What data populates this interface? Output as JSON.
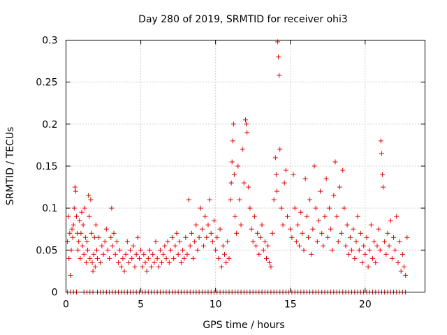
{
  "chart_data": {
    "type": "scatter",
    "title": "Day 280 of 2019, SRMTID for receiver ohi3",
    "xlabel": "GPS time / hours",
    "ylabel": "SRMTID / TECUs",
    "xlim": [
      0,
      24
    ],
    "ylim": [
      0,
      0.3
    ],
    "xticks": [
      0,
      5,
      10,
      15,
      20
    ],
    "xtick_labels": [
      "0",
      "5",
      "10",
      "15",
      "20"
    ],
    "yticks": [
      0,
      0.05,
      0.1,
      0.15,
      0.2,
      0.25,
      0.3
    ],
    "ytick_labels": [
      "0",
      "0.05",
      "0.1",
      "0.15",
      "0.2",
      "0.25",
      "0.3"
    ],
    "grid": true,
    "marker": "+",
    "color": "#e00000",
    "series": [
      {
        "name": "SRMTID",
        "points": [
          [
            0.1,
            0.06
          ],
          [
            0.15,
            0.09
          ],
          [
            0.2,
            0.04
          ],
          [
            0.25,
            0.07
          ],
          [
            0.3,
            0.02
          ],
          [
            0.35,
            0.05
          ],
          [
            0.4,
            0.075
          ],
          [
            0.45,
            0.065
          ],
          [
            0.5,
            0.08
          ],
          [
            0.55,
            0.1
          ],
          [
            0.6,
            0.125
          ],
          [
            0.65,
            0.12
          ],
          [
            0.7,
            0.09
          ],
          [
            0.75,
            0.07
          ],
          [
            0.8,
            0.05
          ],
          [
            0.85,
            0.06
          ],
          [
            0.9,
            0.085
          ],
          [
            0.95,
            0.04
          ],
          [
            1.0,
            0.07
          ],
          [
            1.05,
            0.095
          ],
          [
            1.1,
            0.055
          ],
          [
            1.15,
            0.08
          ],
          [
            1.2,
            0.045
          ],
          [
            1.25,
            0.1
          ],
          [
            1.3,
            0.065
          ],
          [
            1.35,
            0.035
          ],
          [
            1.4,
            0.06
          ],
          [
            1.45,
            0.05
          ],
          [
            1.5,
            0.115
          ],
          [
            1.55,
            0.09
          ],
          [
            1.6,
            0.04
          ],
          [
            1.65,
            0.11
          ],
          [
            1.7,
            0.07
          ],
          [
            1.75,
            0.035
          ],
          [
            1.8,
            0.025
          ],
          [
            1.85,
            0.045
          ],
          [
            1.9,
            0.065
          ],
          [
            1.95,
            0.03
          ],
          [
            2.0,
            0.08
          ],
          [
            2.05,
            0.05
          ],
          [
            2.1,
            0.04
          ],
          [
            2.2,
            0.065
          ],
          [
            2.3,
            0.035
          ],
          [
            2.4,
            0.055
          ],
          [
            2.5,
            0.045
          ],
          [
            2.6,
            0.06
          ],
          [
            2.7,
            0.075
          ],
          [
            2.8,
            0.05
          ],
          [
            2.9,
            0.04
          ],
          [
            3.0,
            0.065
          ],
          [
            3.05,
            0.1
          ],
          [
            3.1,
            0.055
          ],
          [
            3.2,
            0.07
          ],
          [
            3.3,
            0.045
          ],
          [
            3.4,
            0.06
          ],
          [
            3.5,
            0.035
          ],
          [
            3.6,
            0.05
          ],
          [
            3.7,
            0.03
          ],
          [
            3.8,
            0.04
          ],
          [
            3.9,
            0.025
          ],
          [
            4.0,
            0.045
          ],
          [
            4.1,
            0.06
          ],
          [
            4.2,
            0.035
          ],
          [
            4.3,
            0.05
          ],
          [
            4.4,
            0.04
          ],
          [
            4.5,
            0.055
          ],
          [
            4.6,
            0.03
          ],
          [
            4.7,
            0.045
          ],
          [
            4.8,
            0.065
          ],
          [
            4.9,
            0.04
          ],
          [
            5.0,
            0.05
          ],
          [
            5.1,
            0.03
          ],
          [
            5.2,
            0.045
          ],
          [
            5.3,
            0.035
          ],
          [
            5.4,
            0.025
          ],
          [
            5.5,
            0.04
          ],
          [
            5.6,
            0.05
          ],
          [
            5.7,
            0.03
          ],
          [
            5.8,
            0.045
          ],
          [
            5.9,
            0.035
          ],
          [
            6.0,
            0.06
          ],
          [
            6.1,
            0.04
          ],
          [
            6.2,
            0.03
          ],
          [
            6.3,
            0.05
          ],
          [
            6.4,
            0.035
          ],
          [
            6.5,
            0.045
          ],
          [
            6.6,
            0.055
          ],
          [
            6.7,
            0.04
          ],
          [
            6.8,
            0.06
          ],
          [
            6.9,
            0.035
          ],
          [
            7.0,
            0.05
          ],
          [
            7.1,
            0.065
          ],
          [
            7.2,
            0.04
          ],
          [
            7.3,
            0.055
          ],
          [
            7.4,
            0.07
          ],
          [
            7.5,
            0.045
          ],
          [
            7.6,
            0.06
          ],
          [
            7.7,
            0.035
          ],
          [
            7.8,
            0.05
          ],
          [
            7.9,
            0.04
          ],
          [
            8.0,
            0.065
          ],
          [
            8.1,
            0.045
          ],
          [
            8.2,
            0.11
          ],
          [
            8.3,
            0.055
          ],
          [
            8.4,
            0.07
          ],
          [
            8.5,
            0.04
          ],
          [
            8.6,
            0.06
          ],
          [
            8.7,
            0.08
          ],
          [
            8.8,
            0.05
          ],
          [
            8.9,
            0.065
          ],
          [
            9.0,
            0.1
          ],
          [
            9.1,
            0.075
          ],
          [
            9.2,
            0.055
          ],
          [
            9.3,
            0.09
          ],
          [
            9.4,
            0.065
          ],
          [
            9.5,
            0.08
          ],
          [
            9.6,
            0.11
          ],
          [
            9.7,
            0.07
          ],
          [
            9.8,
            0.06
          ],
          [
            9.9,
            0.085
          ],
          [
            10.0,
            0.05
          ],
          [
            10.1,
            0.065
          ],
          [
            10.2,
            0.04
          ],
          [
            10.3,
            0.075
          ],
          [
            10.4,
            0.03
          ],
          [
            10.5,
            0.055
          ],
          [
            10.6,
            0.045
          ],
          [
            10.7,
            0.035
          ],
          [
            10.8,
            0.06
          ],
          [
            10.9,
            0.04
          ],
          [
            11.0,
            0.11
          ],
          [
            11.05,
            0.13
          ],
          [
            11.1,
            0.155
          ],
          [
            11.15,
            0.18
          ],
          [
            11.2,
            0.2
          ],
          [
            11.25,
            0.14
          ],
          [
            11.3,
            0.09
          ],
          [
            11.4,
            0.07
          ],
          [
            11.5,
            0.15
          ],
          [
            11.6,
            0.11
          ],
          [
            11.7,
            0.08
          ],
          [
            11.8,
            0.17
          ],
          [
            11.9,
            0.13
          ],
          [
            12.0,
            0.205
          ],
          [
            12.05,
            0.2
          ],
          [
            12.1,
            0.19
          ],
          [
            12.2,
            0.125
          ],
          [
            12.3,
            0.1
          ],
          [
            12.4,
            0.075
          ],
          [
            12.5,
            0.06
          ],
          [
            12.6,
            0.09
          ],
          [
            12.7,
            0.055
          ],
          [
            12.8,
            0.07
          ],
          [
            12.9,
            0.045
          ],
          [
            13.0,
            0.065
          ],
          [
            13.1,
            0.08
          ],
          [
            13.2,
            0.05
          ],
          [
            13.3,
            0.06
          ],
          [
            13.4,
            0.04
          ],
          [
            13.5,
            0.055
          ],
          [
            13.6,
            0.035
          ],
          [
            13.7,
            0.03
          ],
          [
            13.8,
            0.07
          ],
          [
            13.9,
            0.11
          ],
          [
            14.0,
            0.16
          ],
          [
            14.05,
            0.14
          ],
          [
            14.1,
            0.12
          ],
          [
            14.15,
            0.298
          ],
          [
            14.2,
            0.28
          ],
          [
            14.25,
            0.258
          ],
          [
            14.3,
            0.17
          ],
          [
            14.4,
            0.1
          ],
          [
            14.5,
            0.08
          ],
          [
            14.6,
            0.13
          ],
          [
            14.7,
            0.145
          ],
          [
            14.8,
            0.09
          ],
          [
            15.0,
            0.075
          ],
          [
            15.1,
            0.065
          ],
          [
            15.2,
            0.14
          ],
          [
            15.3,
            0.1
          ],
          [
            15.4,
            0.06
          ],
          [
            15.5,
            0.08
          ],
          [
            15.6,
            0.055
          ],
          [
            15.7,
            0.095
          ],
          [
            15.8,
            0.07
          ],
          [
            15.9,
            0.05
          ],
          [
            16.0,
            0.135
          ],
          [
            16.1,
            0.09
          ],
          [
            16.2,
            0.065
          ],
          [
            16.3,
            0.11
          ],
          [
            16.4,
            0.045
          ],
          [
            16.5,
            0.075
          ],
          [
            16.6,
            0.15
          ],
          [
            16.7,
            0.1
          ],
          [
            16.8,
            0.06
          ],
          [
            16.9,
            0.085
          ],
          [
            17.0,
            0.12
          ],
          [
            17.1,
            0.07
          ],
          [
            17.2,
            0.055
          ],
          [
            17.3,
            0.09
          ],
          [
            17.4,
            0.135
          ],
          [
            17.5,
            0.065
          ],
          [
            17.6,
            0.1
          ],
          [
            17.7,
            0.075
          ],
          [
            17.8,
            0.05
          ],
          [
            17.9,
            0.115
          ],
          [
            18.0,
            0.155
          ],
          [
            18.1,
            0.09
          ],
          [
            18.2,
            0.06
          ],
          [
            18.3,
            0.125
          ],
          [
            18.4,
            0.07
          ],
          [
            18.5,
            0.145
          ],
          [
            18.6,
            0.1
          ],
          [
            18.7,
            0.055
          ],
          [
            18.8,
            0.08
          ],
          [
            18.9,
            0.045
          ],
          [
            19.0,
            0.065
          ],
          [
            19.1,
            0.05
          ],
          [
            19.2,
            0.075
          ],
          [
            19.3,
            0.04
          ],
          [
            19.4,
            0.06
          ],
          [
            19.5,
            0.09
          ],
          [
            19.6,
            0.05
          ],
          [
            19.7,
            0.07
          ],
          [
            19.8,
            0.035
          ],
          [
            19.9,
            0.055
          ],
          [
            20.0,
            0.045
          ],
          [
            20.1,
            0.065
          ],
          [
            20.2,
            0.03
          ],
          [
            20.3,
            0.05
          ],
          [
            20.4,
            0.08
          ],
          [
            20.5,
            0.04
          ],
          [
            20.6,
            0.06
          ],
          [
            20.7,
            0.035
          ],
          [
            20.8,
            0.055
          ],
          [
            20.9,
            0.075
          ],
          [
            21.0,
            0.05
          ],
          [
            21.05,
            0.18
          ],
          [
            21.1,
            0.165
          ],
          [
            21.15,
            0.14
          ],
          [
            21.2,
            0.125
          ],
          [
            21.3,
            0.06
          ],
          [
            21.4,
            0.045
          ],
          [
            21.5,
            0.07
          ],
          [
            21.6,
            0.055
          ],
          [
            21.7,
            0.085
          ],
          [
            21.8,
            0.04
          ],
          [
            21.9,
            0.065
          ],
          [
            22.0,
            0.05
          ],
          [
            22.1,
            0.09
          ],
          [
            22.2,
            0.035
          ],
          [
            22.3,
            0.06
          ],
          [
            22.4,
            0.025
          ],
          [
            22.5,
            0.045
          ],
          [
            22.6,
            0.03
          ],
          [
            22.7,
            0.02
          ],
          [
            22.8,
            0.065
          ]
        ],
        "zeros_x": [
          0.1,
          0.3,
          0.5,
          0.7,
          1.2,
          1.4,
          1.6,
          1.8,
          2.1,
          2.3,
          2.5,
          2.7,
          2.9,
          3.1,
          3.3,
          3.5,
          3.7,
          3.9,
          4.1,
          4.3,
          4.5,
          4.7,
          4.9,
          5.1,
          5.3,
          5.5,
          5.7,
          5.9,
          6.1,
          6.3,
          6.5,
          6.7,
          6.9,
          7.1,
          7.3,
          7.5,
          7.7,
          7.9,
          8.1,
          8.3,
          8.5,
          8.7,
          8.9,
          9.1,
          9.3,
          9.5,
          9.7,
          9.9,
          10.1,
          10.3,
          10.5,
          10.7,
          10.9,
          11.1,
          11.3,
          11.5,
          11.7,
          11.9,
          12.1,
          12.3,
          12.5,
          12.7,
          12.9,
          13.1,
          13.3,
          13.5,
          13.7,
          13.9,
          14.1,
          14.3,
          14.5,
          14.7,
          14.9,
          15.1,
          15.3,
          15.5,
          15.7,
          15.9,
          16.1,
          16.3,
          16.5,
          16.7,
          16.9,
          17.1,
          17.3,
          17.5,
          17.7,
          17.9,
          18.1,
          18.3,
          18.5,
          18.7,
          18.9,
          19.1,
          19.3,
          19.5,
          19.7,
          19.9,
          20.1,
          20.3,
          20.5,
          20.7,
          20.9,
          21.1,
          21.3,
          21.5,
          21.7,
          21.9,
          22.1,
          22.3,
          22.5,
          22.7
        ]
      }
    ]
  }
}
